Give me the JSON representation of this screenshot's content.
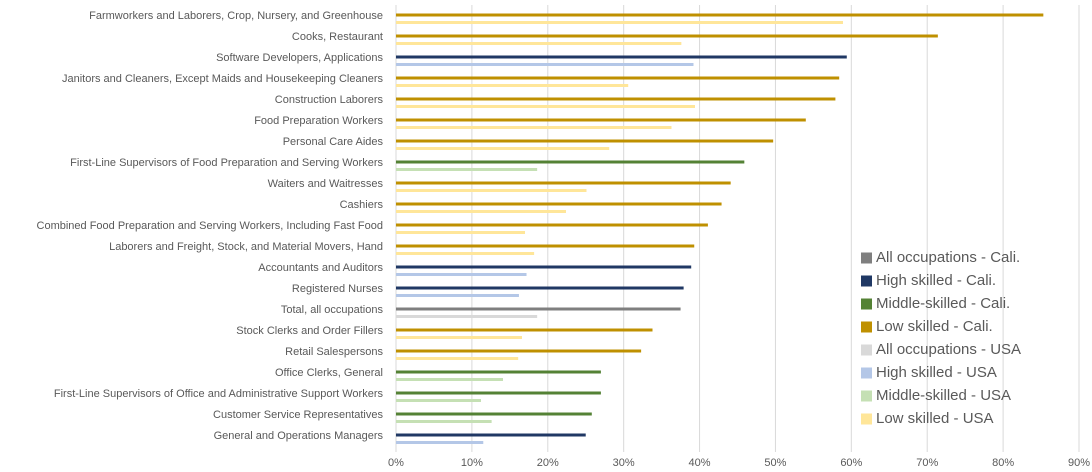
{
  "chart_data": {
    "type": "bar",
    "orientation": "horizontal",
    "categories": [
      "Farmworkers and Laborers, Crop, Nursery, and Greenhouse",
      "Cooks, Restaurant",
      "Software Developers, Applications",
      "Janitors and Cleaners, Except Maids and Housekeeping Cleaners",
      "Construction Laborers",
      "Food Preparation Workers",
      "Personal Care Aides",
      "First-Line Supervisors of Food Preparation and Serving Workers",
      "Waiters and Waitresses",
      "Cashiers",
      "Combined Food Preparation and Serving Workers, Including Fast Food",
      "Laborers and Freight, Stock, and Material Movers, Hand",
      "Accountants and Auditors",
      "Registered Nurses",
      "Total, all occupations",
      "Stock Clerks and Order Fillers",
      "Retail Salespersons",
      "Office Clerks, General",
      "First-Line Supervisors of Office and Administrative Support Workers",
      "Customer Service Representatives",
      "General and Operations Managers"
    ],
    "series": [
      {
        "name": "All occupations - Cali.",
        "color": "#7f7f7f",
        "values": [
          null,
          null,
          null,
          null,
          null,
          null,
          null,
          null,
          null,
          null,
          null,
          null,
          null,
          null,
          37.5,
          null,
          null,
          null,
          null,
          null,
          null
        ]
      },
      {
        "name": "High skilled - Cali.",
        "color": "#203864",
        "values": [
          null,
          null,
          59.4,
          null,
          null,
          null,
          null,
          null,
          null,
          null,
          null,
          null,
          38.9,
          37.9,
          null,
          null,
          null,
          null,
          null,
          null,
          25.0
        ]
      },
      {
        "name": "Middle-skilled - Cali.",
        "color": "#548235",
        "values": [
          null,
          null,
          null,
          null,
          null,
          null,
          null,
          45.9,
          null,
          null,
          null,
          null,
          null,
          null,
          null,
          null,
          null,
          27.0,
          27.0,
          25.8,
          null
        ]
      },
      {
        "name": "Low skilled - Cali.",
        "color": "#bf9000",
        "values": [
          85.3,
          71.4,
          null,
          58.4,
          57.9,
          54.0,
          49.7,
          null,
          44.1,
          42.9,
          41.1,
          39.3,
          null,
          null,
          null,
          33.8,
          32.3,
          null,
          null,
          null,
          null
        ]
      },
      {
        "name": "All occupations - USA",
        "color": "#d9d9d9",
        "values": [
          null,
          null,
          null,
          null,
          null,
          null,
          null,
          null,
          null,
          null,
          null,
          null,
          null,
          null,
          18.6,
          null,
          null,
          null,
          null,
          null,
          null
        ]
      },
      {
        "name": "High skilled - USA",
        "color": "#b4c7e7",
        "values": [
          null,
          null,
          39.2,
          null,
          null,
          null,
          null,
          null,
          null,
          null,
          null,
          null,
          17.2,
          16.2,
          null,
          null,
          null,
          null,
          null,
          null,
          11.5
        ]
      },
      {
        "name": "Middle-skilled - USA",
        "color": "#c5e0b4",
        "values": [
          null,
          null,
          null,
          null,
          null,
          null,
          null,
          18.6,
          null,
          null,
          null,
          null,
          null,
          null,
          null,
          null,
          null,
          14.1,
          11.2,
          12.6,
          null
        ]
      },
      {
        "name": "Low skilled - USA",
        "color": "#ffe699",
        "values": [
          58.9,
          37.6,
          null,
          30.6,
          39.4,
          36.3,
          28.1,
          null,
          25.1,
          22.4,
          17.0,
          18.2,
          null,
          null,
          null,
          16.6,
          16.1,
          null,
          null,
          null,
          null
        ]
      }
    ],
    "xlim": [
      0,
      90
    ],
    "xticks": [
      {
        "value": 0,
        "label": "0%"
      },
      {
        "value": 10,
        "label": "10%"
      },
      {
        "value": 20,
        "label": "20%"
      },
      {
        "value": 30,
        "label": "30%"
      },
      {
        "value": 40,
        "label": "40%"
      },
      {
        "value": 50,
        "label": "50%"
      },
      {
        "value": 60,
        "label": "60%"
      },
      {
        "value": 70,
        "label": "70%"
      },
      {
        "value": 80,
        "label": "80%"
      },
      {
        "value": 90,
        "label": "90%"
      }
    ],
    "grid": true,
    "legend": "right"
  }
}
